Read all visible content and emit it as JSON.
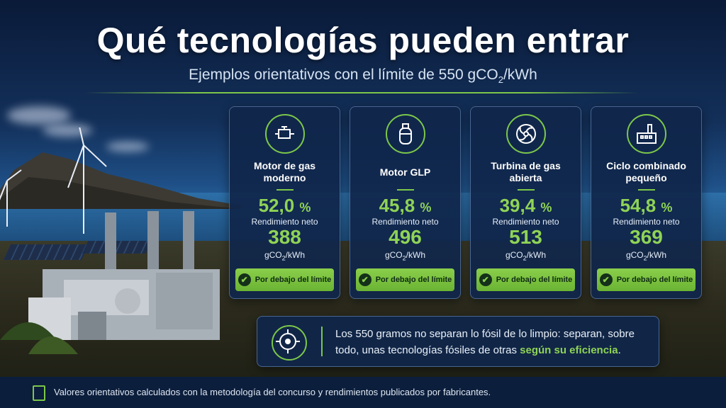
{
  "header": {
    "title": "Qué tecnologías pueden entrar",
    "subtitle_prefix": "Ejemplos orientativos con el límite de 550 gCO",
    "subtitle_sub": "2",
    "subtitle_suffix": "/kWh"
  },
  "cards": [
    {
      "name": "Motor de gas moderno",
      "icon": "engine-icon",
      "efficiency": "52,0",
      "unit": "%",
      "efficiency_label": "Rendimiento neto",
      "emissions": "388",
      "emissions_unit_prefix": "gCO",
      "emissions_unit_sub": "2",
      "emissions_unit_suffix": "/kWh",
      "badge": "Por debajo del límite"
    },
    {
      "name": "Motor GLP",
      "icon": "gas-cylinder-icon",
      "efficiency": "45,8",
      "unit": "%",
      "efficiency_label": "Rendimiento neto",
      "emissions": "496",
      "emissions_unit_prefix": "gCO",
      "emissions_unit_sub": "2",
      "emissions_unit_suffix": "/kWh",
      "badge": "Por debajo del límite"
    },
    {
      "name": "Turbina de gas abierta",
      "icon": "turbine-icon",
      "efficiency": "39,4",
      "unit": "%",
      "efficiency_label": "Rendimiento neto",
      "emissions": "513",
      "emissions_unit_prefix": "gCO",
      "emissions_unit_sub": "2",
      "emissions_unit_suffix": "/kWh",
      "badge": "Por debajo del límite"
    },
    {
      "name": "Ciclo combinado pequeño",
      "icon": "factory-icon",
      "efficiency": "54,8",
      "unit": "%",
      "efficiency_label": "Rendimiento neto",
      "emissions": "369",
      "emissions_unit_prefix": "gCO",
      "emissions_unit_sub": "2",
      "emissions_unit_suffix": "/kWh",
      "badge": "Por debajo del límite"
    }
  ],
  "note": {
    "icon": "target-icon",
    "text": "Los 550 gramos no separan lo fósil de lo limpio: separan, sobre todo, unas tecnologías fósiles de otras",
    "highlight": "según su eficiencia",
    "end": "."
  },
  "footer": {
    "icon": "clipboard-icon",
    "text": "Valores orientativos calculados con la metodología del concurso y rendimientos publicados por fabricantes."
  },
  "colors": {
    "accent": "#7cc74a",
    "card_bg": "#10264a",
    "badge": "#7cc74a"
  }
}
